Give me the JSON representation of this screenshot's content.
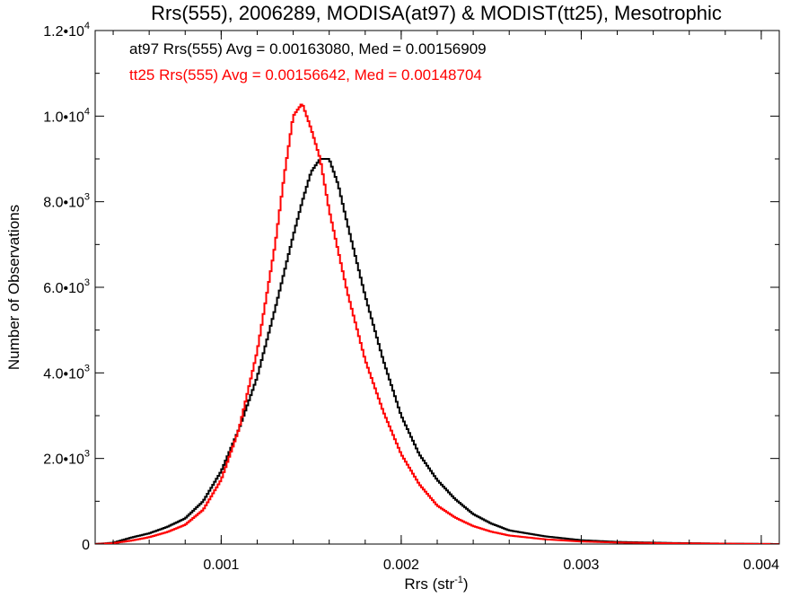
{
  "chart_data": {
    "type": "line",
    "title": "Rrs(555), 2006289, MODISA(at97) & MODIST(tt25), Mesotrophic",
    "xlabel": "Rrs (str",
    "xlabel_sup": "-1",
    "xlabel_end": ")",
    "ylabel": "Number of Observations",
    "xlim": [
      0.0003,
      0.0041
    ],
    "ylim": [
      0,
      12000
    ],
    "x_ticks": [
      {
        "value": 0.001,
        "label": "0.001"
      },
      {
        "value": 0.002,
        "label": "0.002"
      },
      {
        "value": 0.003,
        "label": "0.003"
      },
      {
        "value": 0.004,
        "label": "0.004"
      }
    ],
    "y_ticks": [
      {
        "value": 0,
        "mant": "0",
        "exp": ""
      },
      {
        "value": 2000,
        "mant": "2.0•10",
        "exp": "3"
      },
      {
        "value": 4000,
        "mant": "4.0•10",
        "exp": "3"
      },
      {
        "value": 6000,
        "mant": "6.0•10",
        "exp": "3"
      },
      {
        "value": 8000,
        "mant": "8.0•10",
        "exp": "3"
      },
      {
        "value": 10000,
        "mant": "1.0•10",
        "exp": "4"
      },
      {
        "value": 12000,
        "mant": "1.2•10",
        "exp": "4"
      }
    ],
    "annotations": [
      {
        "text": "at97 Rrs(555) Avg = 0.00163080, Med = 0.00156909",
        "color": "#000000"
      },
      {
        "text": "tt25 Rrs(555) Avg = 0.00156642, Med = 0.00148704",
        "color": "#ff0000"
      }
    ],
    "series": [
      {
        "color": "#000000",
        "x": [
          0.0003,
          0.0004,
          0.0005,
          0.0006,
          0.0007,
          0.0008,
          0.0009,
          0.001,
          0.0011,
          0.0012,
          0.0013,
          0.0014,
          0.00145,
          0.0015,
          0.00155,
          0.0016,
          0.00165,
          0.0017,
          0.0018,
          0.0019,
          0.002,
          0.0021,
          0.0022,
          0.0023,
          0.0024,
          0.0025,
          0.0026,
          0.0028,
          0.003,
          0.0032,
          0.0035,
          0.0038,
          0.0041
        ],
        "y": [
          0,
          30,
          150,
          250,
          400,
          600,
          1000,
          1700,
          2700,
          3900,
          5500,
          7200,
          8000,
          8700,
          9000,
          9000,
          8400,
          7500,
          5800,
          4300,
          3000,
          2100,
          1500,
          1050,
          700,
          480,
          320,
          180,
          90,
          50,
          25,
          10,
          0
        ]
      },
      {
        "color": "#ff0000",
        "x": [
          0.0003,
          0.0004,
          0.0005,
          0.0006,
          0.0007,
          0.0008,
          0.0009,
          0.001,
          0.0011,
          0.0012,
          0.0013,
          0.00135,
          0.0014,
          0.00145,
          0.0015,
          0.00155,
          0.0016,
          0.0017,
          0.0018,
          0.0019,
          0.002,
          0.0021,
          0.0022,
          0.0023,
          0.0024,
          0.0025,
          0.0026,
          0.0028,
          0.003,
          0.0032,
          0.0035,
          0.0038,
          0.0041
        ],
        "y": [
          0,
          20,
          80,
          160,
          280,
          450,
          800,
          1500,
          2700,
          4500,
          7000,
          8600,
          10000,
          10300,
          9700,
          9000,
          7800,
          5900,
          4300,
          3100,
          2100,
          1400,
          900,
          620,
          420,
          290,
          200,
          110,
          60,
          35,
          18,
          8,
          0
        ]
      }
    ],
    "grid": false
  }
}
